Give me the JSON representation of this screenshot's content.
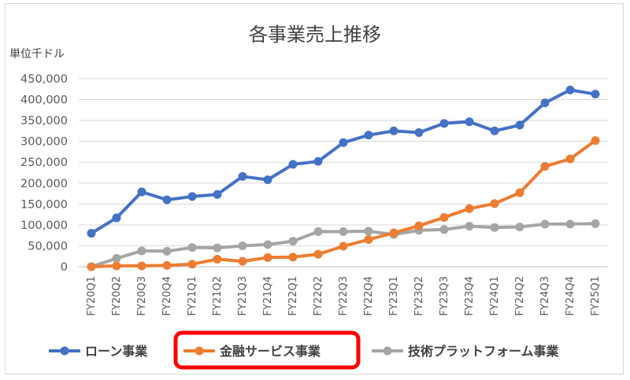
{
  "chart_data": {
    "type": "line",
    "title": "各事業売上推移",
    "ylabel": "単位千ドル",
    "xlabel": "",
    "ylim": [
      0,
      450000
    ],
    "yticks": [
      "0",
      "50,000",
      "100,000",
      "150,000",
      "200,000",
      "250,000",
      "300,000",
      "350,000",
      "400,000",
      "450,000"
    ],
    "grid": true,
    "legend_position": "bottom",
    "categories": [
      "FY20Q1",
      "FY20Q2",
      "FY20Q3",
      "FY20Q4",
      "FY21Q1",
      "FY21Q2",
      "FY21Q3",
      "FY21Q4",
      "FY22Q1",
      "FY22Q2",
      "FY22Q3",
      "FY22Q4",
      "FY23Q1",
      "FY23Q2",
      "FY23Q3",
      "FY23Q4",
      "FY24Q1",
      "FY24Q2",
      "FY24Q3",
      "FY24Q4",
      "FY25Q1"
    ],
    "series": [
      {
        "name": "ローン事業",
        "color": "#4472C4",
        "values": [
          80000,
          117000,
          179000,
          160000,
          168000,
          173000,
          216000,
          208000,
          245000,
          252000,
          297000,
          315000,
          325000,
          321000,
          343000,
          347000,
          325000,
          339000,
          392000,
          423000,
          413000
        ]
      },
      {
        "name": "金融サービス事業",
        "color": "#ED7D31",
        "values": [
          0,
          2000,
          2000,
          3000,
          6000,
          18000,
          13000,
          22000,
          23000,
          30000,
          49000,
          65000,
          81000,
          98000,
          118000,
          139000,
          151000,
          177000,
          240000,
          258000,
          302000
        ]
      },
      {
        "name": "技術プラットフォーム事業",
        "color": "#A5A5A5",
        "values": [
          0,
          20000,
          38000,
          37000,
          46000,
          45000,
          50000,
          53000,
          61000,
          84000,
          84000,
          85000,
          77000,
          87000,
          89000,
          97000,
          94000,
          95000,
          102000,
          102000,
          103000
        ]
      }
    ],
    "highlight": {
      "series_index": 1,
      "color": "#FF0000"
    }
  }
}
